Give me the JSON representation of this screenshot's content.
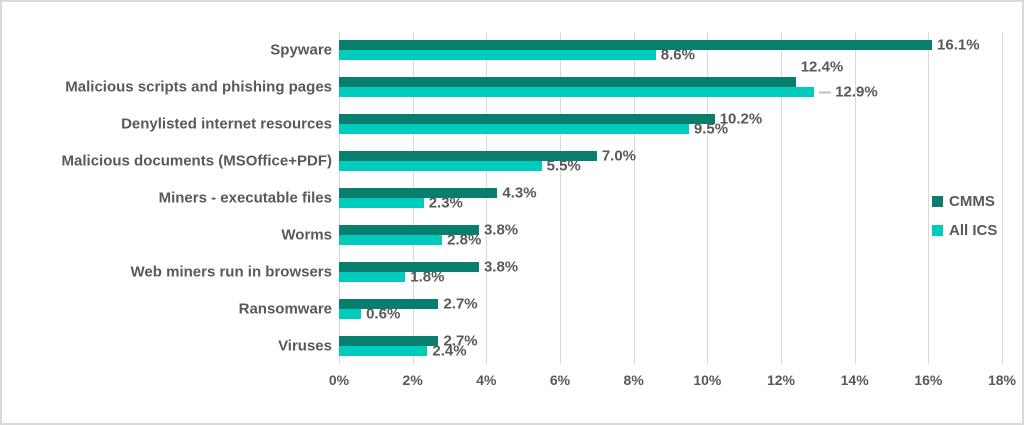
{
  "chart_data": {
    "type": "bar",
    "orientation": "horizontal",
    "title": "",
    "xlabel": "",
    "ylabel": "",
    "xlim": [
      0,
      18
    ],
    "grid": true,
    "legend_position": "right",
    "categories": [
      "Spyware",
      "Malicious scripts and phishing pages",
      "Denylisted internet resources",
      "Malicious documents (MSOffice+PDF)",
      "Miners - executable files",
      "Worms",
      "Web miners run in browsers",
      "Ransomware",
      "Viruses"
    ],
    "series": [
      {
        "name": "CMMS",
        "color": "#087f6e",
        "values": [
          16.1,
          12.4,
          10.2,
          7.0,
          4.3,
          3.8,
          3.8,
          2.7,
          2.7
        ],
        "labels": [
          "16.1%",
          "12.4%",
          "10.2%",
          "7.0%",
          "4.3%",
          "3.8%",
          "3.8%",
          "2.7%",
          "2.7%"
        ]
      },
      {
        "name": "All ICS",
        "color": "#00ccbe",
        "values": [
          8.6,
          12.9,
          9.5,
          5.5,
          2.3,
          2.8,
          1.8,
          0.6,
          2.4
        ],
        "labels": [
          "8.6%",
          "12.9%",
          "9.5%",
          "5.5%",
          "2.3%",
          "2.8%",
          "1.8%",
          "0.6%",
          "2.4%"
        ]
      }
    ],
    "x_ticks": [
      "0%",
      "2%",
      "4%",
      "6%",
      "8%",
      "10%",
      "12%",
      "14%",
      "16%",
      "18%"
    ]
  },
  "colors": {
    "grid": "#d9d9d9",
    "text": "#595959",
    "frame_border": "#d9d9d9",
    "background": "#ffffff"
  }
}
